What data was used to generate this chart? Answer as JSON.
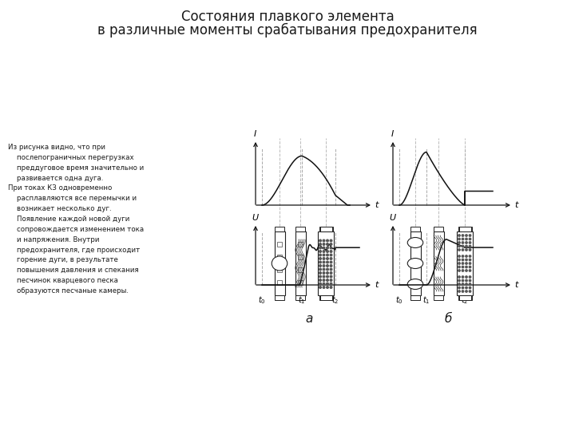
{
  "title_line1": "Состояния плавкого элемента",
  "title_line2": "в различные моменты срабатывания предохранителя",
  "title_fontsize": 12,
  "background_color": "#ffffff",
  "text_color": "#1a1a1a",
  "annotation_text": "Из рисунка видно, что при\n    послепограничных перегрузках\n    преддуговое время значительно и\n    развивается одна дуга.\nПри токах КЗ одновременно\n    расплавляются все перемычки и\n    возникает несколько дуг.\n    Появление каждой новой дуги\n    сопровождается изменением тока\n    и напряжения. Внутри\n    предохранителя, где происходит\n    горение дуги, в результате\n    повышения давления и спекания\n    песчинок кварцевого песка\n    образуются песчаные камеры.",
  "label_a": "а",
  "label_b": "б"
}
